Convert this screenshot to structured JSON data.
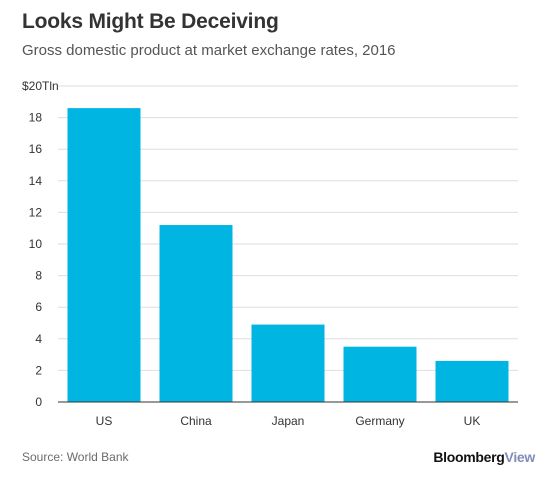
{
  "title": "Looks Might Be Deceiving",
  "subtitle": "Gross domestic product at market exchange rates, 2016",
  "source": "Source: World Bank",
  "brand": {
    "part1": "Bloomberg",
    "part2": "View"
  },
  "colors": {
    "bar": "#00b5e2",
    "grid": "#dedede",
    "axis": "#333333"
  },
  "chart_data": {
    "type": "bar",
    "title": "Looks Might Be Deceiving",
    "subtitle": "Gross domestic product at market exchange rates, 2016",
    "categories": [
      "US",
      "China",
      "Japan",
      "Germany",
      "UK"
    ],
    "values": [
      18.6,
      11.2,
      4.9,
      3.5,
      2.6
    ],
    "ylim": [
      0,
      20
    ],
    "yticks": [
      0,
      2,
      4,
      6,
      8,
      10,
      12,
      14,
      16,
      18
    ],
    "top_label": "$20Tln",
    "xlabel": "",
    "ylabel": "",
    "grid": true
  }
}
